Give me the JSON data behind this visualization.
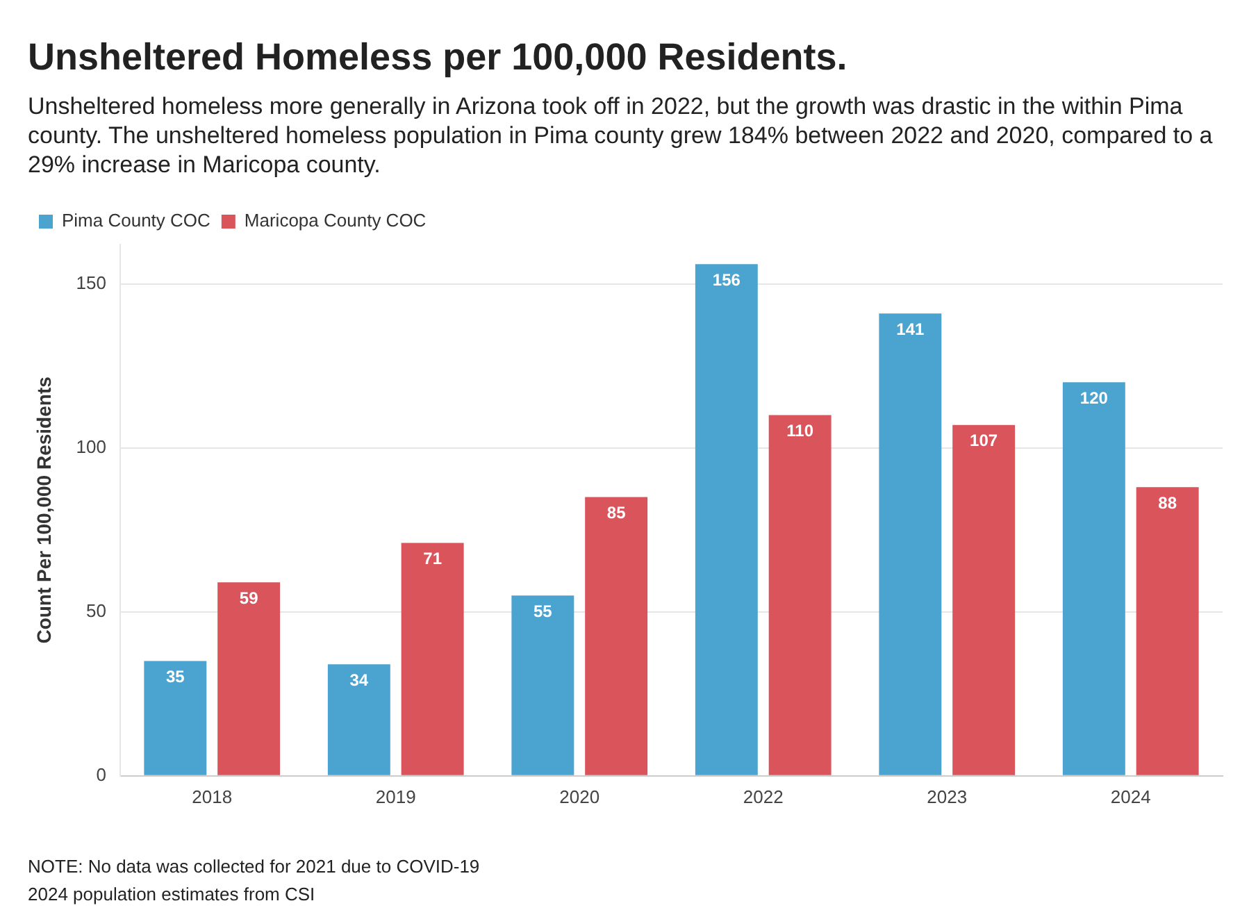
{
  "chart_data": {
    "type": "bar",
    "title": "Unsheltered Homeless per 100,000 Residents.",
    "subtitle": "Unsheltered homeless more generally in Arizona took off in 2022, but the growth was drastic in the within Pima county. The unsheltered homeless population in Pima county grew 184% between 2022 and 2020, compared to a 29% increase in Maricopa county.",
    "ylabel": "Count Per 100,000 Residents",
    "categories": [
      "2018",
      "2019",
      "2020",
      "2022",
      "2023",
      "2024"
    ],
    "series": [
      {
        "name": "Pima County COC",
        "color": "#4ba3cf",
        "values": [
          35,
          34,
          55,
          156,
          141,
          120
        ]
      },
      {
        "name": "Maricopa County COC",
        "color": "#d9545b",
        "values": [
          59,
          71,
          85,
          110,
          107,
          88
        ]
      }
    ],
    "ylim": [
      0,
      162
    ],
    "yticks": [
      0,
      50,
      100,
      150
    ],
    "grid": "y",
    "legend": "top left",
    "data_labels": true,
    "annotations": [
      "NOTE: No data was collected for 2021 due to COVID-19",
      "2024 population estimates from CSI"
    ]
  }
}
